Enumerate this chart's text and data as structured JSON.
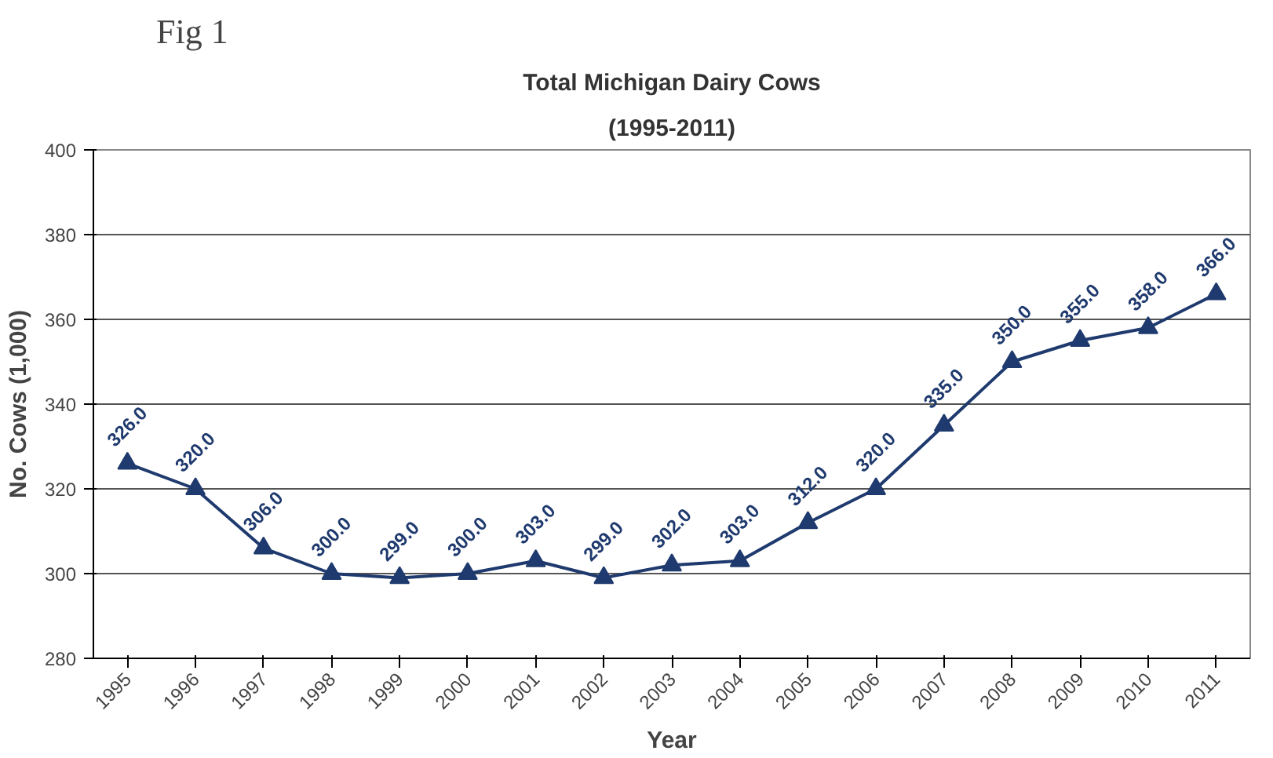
{
  "chart_data": {
    "type": "line",
    "title": "Total Michigan Dairy Cows",
    "subtitle": "(1995-2011)",
    "xlabel": "Year",
    "ylabel": "No. Cows (1,000)",
    "categories": [
      "1995",
      "1996",
      "1997",
      "1998",
      "1999",
      "2000",
      "2001",
      "2002",
      "2003",
      "2004",
      "2005",
      "2006",
      "2007",
      "2008",
      "2009",
      "2010",
      "2011"
    ],
    "values": [
      326,
      320,
      306,
      300,
      299,
      300,
      303,
      299,
      302,
      303,
      312,
      320,
      335,
      350,
      355,
      358,
      366
    ],
    "value_labels": [
      "326.0",
      "320.0",
      "306.0",
      "300.0",
      "299.0",
      "300.0",
      "303.0",
      "299.0",
      "302.0",
      "303.0",
      "312.0",
      "320.0",
      "335.0",
      "350.0",
      "355.0",
      "358.0",
      "366.0"
    ],
    "color": "#1f3a6e",
    "ylim": [
      280,
      400
    ],
    "yticks": [
      280,
      300,
      320,
      340,
      360,
      380,
      400
    ],
    "grid": "y",
    "marker": "triangle",
    "line_style": "solid",
    "annotations": [
      "Fig 1"
    ]
  }
}
